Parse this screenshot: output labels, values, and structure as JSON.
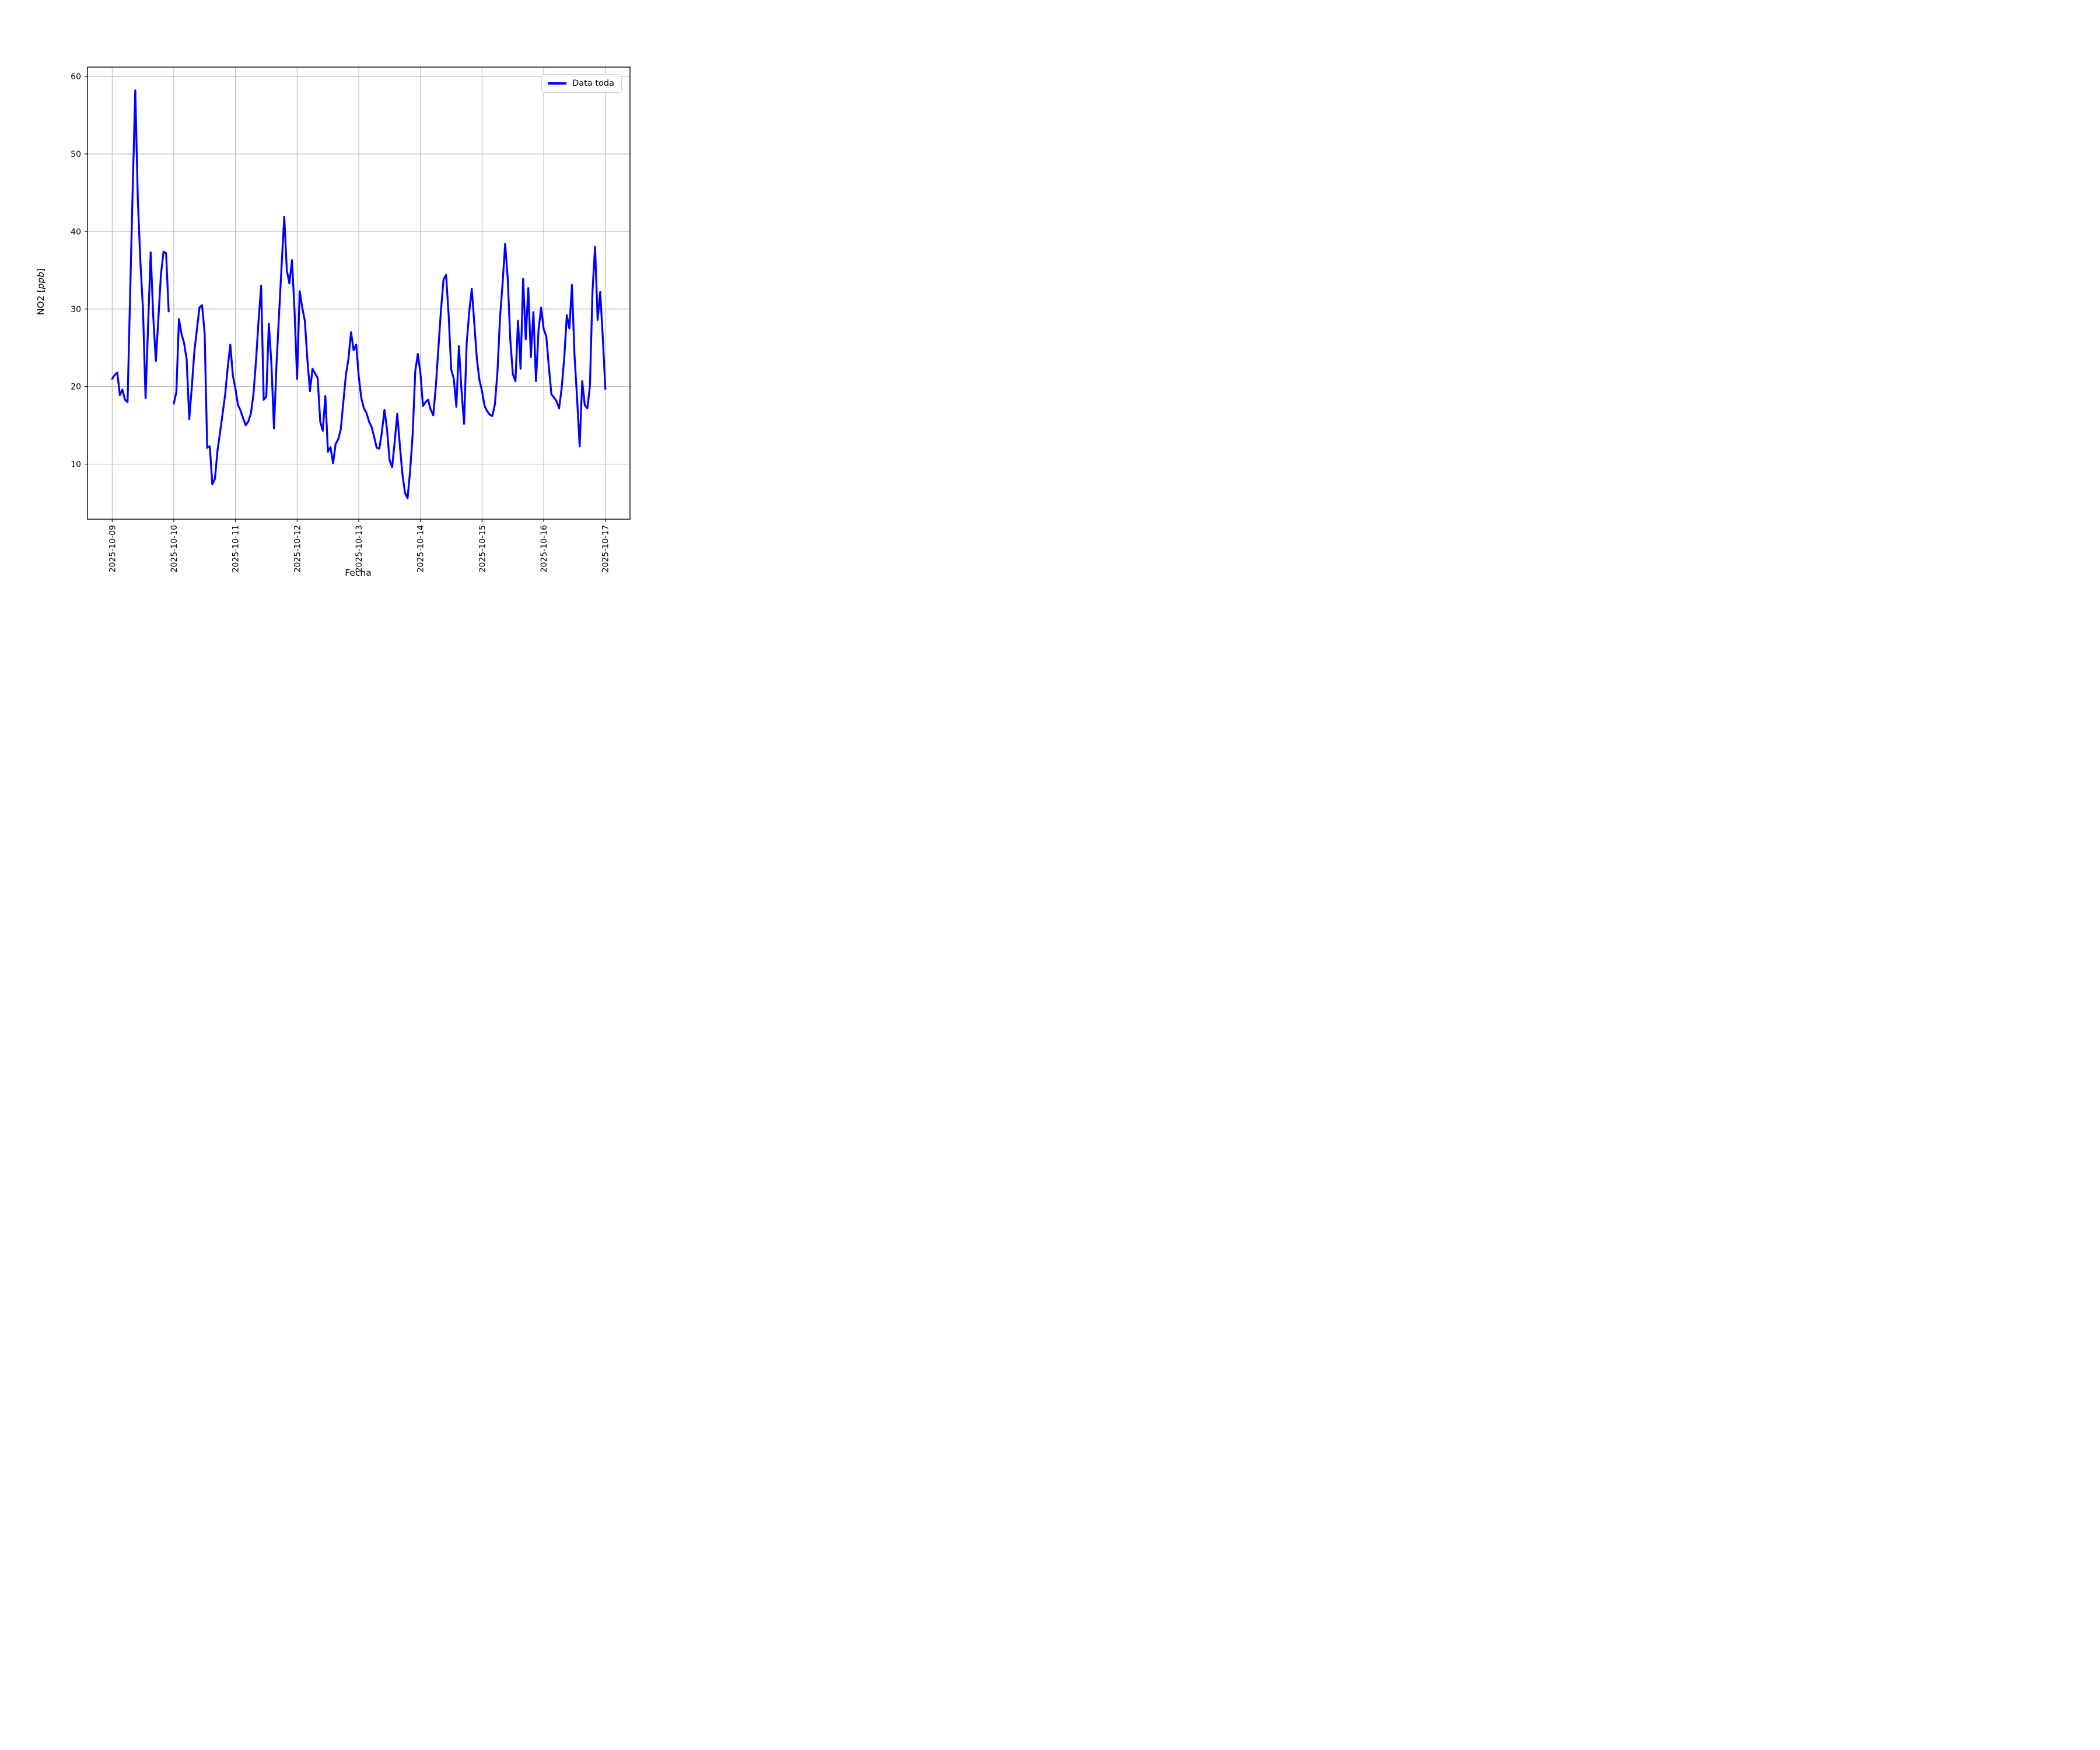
{
  "chart_data": {
    "type": "line",
    "title": "",
    "xlabel": "Fecha",
    "ylabel": "NO2 [ppb]",
    "ylabel_parts": {
      "prefix": "NO2 [",
      "unit_italic": "ppb",
      "suffix": "]"
    },
    "x_tick_labels": [
      "2025-10-09",
      "2025-10-10",
      "2025-10-11",
      "2025-10-12",
      "2025-10-13",
      "2025-10-14",
      "2025-10-15",
      "2025-10-16",
      "2025-10-17"
    ],
    "y_ticks": [
      10,
      20,
      30,
      40,
      50,
      60
    ],
    "ylim": [
      2.9,
      61.2
    ],
    "xlim_days": [
      -0.4,
      8.4
    ],
    "grid": true,
    "grid_color": "#b0b0b0",
    "legend_position": "upper right",
    "legend": [
      {
        "label": "Data toda",
        "color": "#0000ff"
      }
    ],
    "series": [
      {
        "name": "Data toda",
        "color": "#0000ff",
        "start": "2025-10-09 00:00",
        "step_hours": 1,
        "values": [
          21.0,
          21.5,
          21.8,
          18.9,
          19.6,
          18.3,
          18.0,
          32.0,
          45.5,
          58.2,
          44.0,
          36.0,
          30.0,
          18.5,
          28.0,
          37.3,
          29.0,
          23.3,
          28.8,
          34.5,
          37.4,
          37.2,
          29.7,
          null,
          17.8,
          19.3,
          28.7,
          26.8,
          25.6,
          23.5,
          15.8,
          19.9,
          24.5,
          27.4,
          30.2,
          30.5,
          26.9,
          12.1,
          12.3,
          7.4,
          8.1,
          11.7,
          14.1,
          16.5,
          19.0,
          22.5,
          25.4,
          21.4,
          19.7,
          17.6,
          16.9,
          15.9,
          15.0,
          15.5,
          16.5,
          19.0,
          23.3,
          28.5,
          33.0,
          18.3,
          18.7,
          28.1,
          22.9,
          14.6,
          23.0,
          29.5,
          35.8,
          41.9,
          35.0,
          33.3,
          36.3,
          29.8,
          21.0,
          32.3,
          30.2,
          28.5,
          23.5,
          19.4,
          22.3,
          21.7,
          21.1,
          15.5,
          14.3,
          18.8,
          11.6,
          12.2,
          10.1,
          12.6,
          13.2,
          14.5,
          18.0,
          21.5,
          23.6,
          27.0,
          24.7,
          25.4,
          21.3,
          18.5,
          17.2,
          16.6,
          15.5,
          14.8,
          13.5,
          12.1,
          12.0,
          14.1,
          17.0,
          14.5,
          10.5,
          9.6,
          12.9,
          16.5,
          12.4,
          8.7,
          6.3,
          5.6,
          9.1,
          13.9,
          22.0,
          24.2,
          21.8,
          17.5,
          18.0,
          18.3,
          17.0,
          16.3,
          20.0,
          24.9,
          29.8,
          33.8,
          34.4,
          29.2,
          22.2,
          21.0,
          17.4,
          25.2,
          19.5,
          15.2,
          25.5,
          29.6,
          32.6,
          28.1,
          23.5,
          20.8,
          19.4,
          17.5,
          16.8,
          16.4,
          16.2,
          17.7,
          21.9,
          28.9,
          33.3,
          38.4,
          33.9,
          26.0,
          21.6,
          20.7,
          28.5,
          22.3,
          33.9,
          26.1,
          32.7,
          23.8,
          29.6,
          20.7,
          27.3,
          30.2,
          27.4,
          26.5,
          22.6,
          19.0,
          18.6,
          18.1,
          17.2,
          19.8,
          23.7,
          29.2,
          27.5,
          33.1,
          24.0,
          18.5,
          12.3,
          20.7,
          17.6,
          17.2,
          20.1,
          32.3,
          38.0,
          28.6,
          32.2,
          26.4,
          19.7
        ]
      }
    ]
  }
}
